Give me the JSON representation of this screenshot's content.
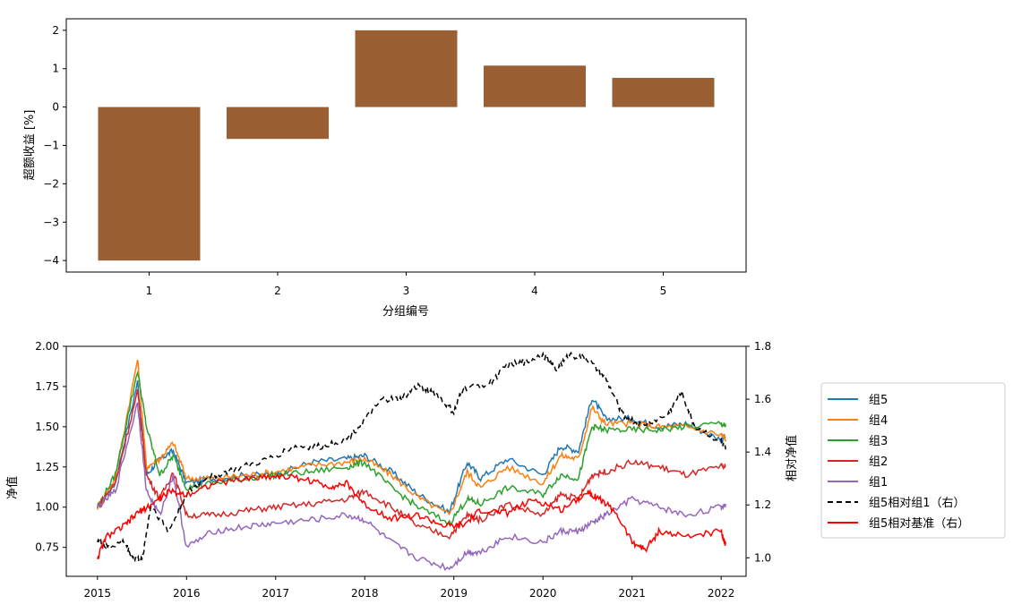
{
  "chart_data": [
    {
      "type": "bar",
      "categories": [
        "1",
        "2",
        "3",
        "4",
        "5"
      ],
      "values": [
        -4.0,
        -0.83,
        2.0,
        1.08,
        0.76
      ],
      "xlabel": "分组编号",
      "ylabel": "超额收益 [%]",
      "ylim": [
        -4.3,
        2.3
      ],
      "yticks": [
        "2",
        "1",
        "0",
        "−1",
        "−2",
        "−3",
        "−4"
      ],
      "color": "#9b5f34",
      "grid": false
    },
    {
      "type": "line",
      "ylabel_left": "净值",
      "ylabel_right": "相对净值",
      "xticks": [
        "2015",
        "2016",
        "2017",
        "2018",
        "2019",
        "2020",
        "2021",
        "2022"
      ],
      "ylim_left": [
        0.57,
        2.0
      ],
      "ylim_right": [
        0.93,
        1.8
      ],
      "yticks_left": [
        "2.00",
        "1.75",
        "1.50",
        "1.25",
        "1.00",
        "0.75"
      ],
      "yticks_right": [
        "1.8",
        "1.6",
        "1.4",
        "1.2",
        "1.0"
      ],
      "legend_position": "outside-right",
      "grid": false,
      "series": [
        {
          "name": "组5",
          "axis": "left",
          "style": "solid",
          "color": "#1f77b4",
          "x": [
            2015.0,
            2015.2,
            2015.45,
            2015.55,
            2015.7,
            2015.85,
            2016.0,
            2016.3,
            2016.7,
            2017.0,
            2017.4,
            2017.8,
            2018.0,
            2018.3,
            2018.6,
            2018.95,
            2019.15,
            2019.3,
            2019.6,
            2020.0,
            2020.2,
            2020.4,
            2020.55,
            2020.7,
            2021.0,
            2021.3,
            2021.6,
            2022.0,
            2022.05
          ],
          "y": [
            1.0,
            1.15,
            1.78,
            1.2,
            1.3,
            1.35,
            1.15,
            1.18,
            1.2,
            1.2,
            1.28,
            1.3,
            1.32,
            1.22,
            1.08,
            0.97,
            1.28,
            1.18,
            1.3,
            1.2,
            1.38,
            1.35,
            1.68,
            1.55,
            1.55,
            1.5,
            1.52,
            1.42,
            1.44
          ]
        },
        {
          "name": "组4",
          "axis": "left",
          "style": "solid",
          "color": "#ff7f0e",
          "x": [
            2015.0,
            2015.2,
            2015.45,
            2015.55,
            2015.7,
            2015.85,
            2016.0,
            2016.3,
            2016.7,
            2017.0,
            2017.4,
            2017.8,
            2018.0,
            2018.3,
            2018.6,
            2018.95,
            2019.15,
            2019.3,
            2019.6,
            2020.0,
            2020.2,
            2020.4,
            2020.55,
            2020.7,
            2021.0,
            2021.3,
            2021.6,
            2022.0,
            2022.05
          ],
          "y": [
            1.0,
            1.18,
            1.92,
            1.25,
            1.3,
            1.4,
            1.18,
            1.18,
            1.2,
            1.22,
            1.26,
            1.28,
            1.3,
            1.2,
            1.06,
            0.95,
            1.22,
            1.12,
            1.25,
            1.15,
            1.32,
            1.3,
            1.62,
            1.52,
            1.52,
            1.5,
            1.5,
            1.45,
            1.42
          ]
        },
        {
          "name": "组3",
          "axis": "left",
          "style": "solid",
          "color": "#2ca02c",
          "x": [
            2015.0,
            2015.2,
            2015.45,
            2015.55,
            2015.7,
            2015.85,
            2016.0,
            2016.3,
            2016.7,
            2017.0,
            2017.4,
            2017.8,
            2018.0,
            2018.3,
            2018.6,
            2018.95,
            2019.15,
            2019.3,
            2019.6,
            2020.0,
            2020.2,
            2020.4,
            2020.55,
            2020.7,
            2021.0,
            2021.3,
            2021.6,
            2022.0,
            2022.05
          ],
          "y": [
            1.0,
            1.2,
            1.85,
            1.5,
            1.2,
            1.32,
            1.12,
            1.15,
            1.18,
            1.2,
            1.22,
            1.25,
            1.28,
            1.12,
            1.0,
            0.9,
            1.05,
            1.02,
            1.12,
            1.08,
            1.2,
            1.18,
            1.5,
            1.48,
            1.48,
            1.48,
            1.5,
            1.52,
            1.5
          ]
        },
        {
          "name": "组2",
          "axis": "left",
          "style": "solid",
          "color": "#d62728",
          "x": [
            2015.0,
            2015.2,
            2015.45,
            2015.55,
            2015.7,
            2015.85,
            2016.0,
            2016.3,
            2016.7,
            2017.0,
            2017.4,
            2017.8,
            2018.0,
            2018.3,
            2018.6,
            2018.95,
            2019.15,
            2019.3,
            2019.6,
            2020.0,
            2020.2,
            2020.4,
            2020.55,
            2020.7,
            2021.0,
            2021.3,
            2021.6,
            2022.0,
            2022.05
          ],
          "y": [
            1.0,
            1.15,
            1.72,
            1.2,
            1.05,
            1.22,
            0.95,
            0.95,
            0.98,
            1.0,
            1.02,
            1.05,
            1.1,
            1.0,
            0.88,
            0.82,
            0.95,
            0.92,
            1.02,
            0.95,
            1.08,
            1.05,
            1.2,
            1.22,
            1.28,
            1.25,
            1.2,
            1.25,
            1.25
          ]
        },
        {
          "name": "组1",
          "axis": "left",
          "style": "solid",
          "color": "#9467bd",
          "x": [
            2015.0,
            2015.2,
            2015.45,
            2015.55,
            2015.7,
            2015.85,
            2016.0,
            2016.3,
            2016.7,
            2017.0,
            2017.4,
            2017.8,
            2018.0,
            2018.3,
            2018.6,
            2018.95,
            2019.15,
            2019.3,
            2019.6,
            2020.0,
            2020.2,
            2020.4,
            2020.55,
            2020.7,
            2021.0,
            2021.3,
            2021.6,
            2022.0,
            2022.05
          ],
          "y": [
            1.0,
            1.1,
            1.65,
            1.1,
            0.95,
            1.2,
            0.75,
            0.85,
            0.88,
            0.9,
            0.92,
            0.95,
            0.92,
            0.78,
            0.68,
            0.62,
            0.72,
            0.72,
            0.82,
            0.78,
            0.85,
            0.85,
            0.9,
            0.95,
            1.05,
            1.0,
            0.95,
            1.0,
            1.02
          ]
        },
        {
          "name": "组5相对组1（右）",
          "axis": "right",
          "style": "dashed",
          "color": "#000000",
          "x": [
            2015.0,
            2015.1,
            2015.3,
            2015.4,
            2015.5,
            2015.6,
            2015.8,
            2016.0,
            2016.2,
            2016.5,
            2016.9,
            2017.2,
            2017.5,
            2017.8,
            2018.0,
            2018.2,
            2018.4,
            2018.6,
            2018.8,
            2019.0,
            2019.1,
            2019.4,
            2019.6,
            2019.8,
            2020.0,
            2020.15,
            2020.3,
            2020.5,
            2020.7,
            2020.9,
            2021.1,
            2021.4,
            2021.55,
            2021.7,
            2022.0,
            2022.05
          ],
          "y": [
            1.07,
            1.04,
            1.06,
            1.0,
            0.99,
            1.2,
            1.1,
            1.24,
            1.3,
            1.33,
            1.37,
            1.42,
            1.42,
            1.45,
            1.52,
            1.6,
            1.6,
            1.65,
            1.62,
            1.55,
            1.64,
            1.66,
            1.73,
            1.74,
            1.77,
            1.71,
            1.77,
            1.75,
            1.68,
            1.54,
            1.5,
            1.54,
            1.63,
            1.5,
            1.44,
            1.41
          ]
        },
        {
          "name": "组5相对基准（右）",
          "axis": "right",
          "style": "solid",
          "color": "#ff0000",
          "x": [
            2015.0,
            2015.1,
            2015.3,
            2015.45,
            2015.6,
            2015.8,
            2016.0,
            2016.3,
            2016.7,
            2017.0,
            2017.3,
            2017.6,
            2017.8,
            2018.0,
            2018.3,
            2018.6,
            2018.9,
            2019.1,
            2019.3,
            2019.6,
            2019.9,
            2020.2,
            2020.5,
            2020.6,
            2020.8,
            2021.0,
            2021.15,
            2021.3,
            2021.6,
            2022.0,
            2022.05
          ],
          "y": [
            1.0,
            1.08,
            1.12,
            1.17,
            1.2,
            1.25,
            1.24,
            1.28,
            1.3,
            1.31,
            1.3,
            1.27,
            1.28,
            1.2,
            1.15,
            1.16,
            1.12,
            1.12,
            1.18,
            1.17,
            1.22,
            1.18,
            1.25,
            1.23,
            1.18,
            1.06,
            1.03,
            1.1,
            1.08,
            1.1,
            1.05
          ]
        }
      ]
    }
  ]
}
